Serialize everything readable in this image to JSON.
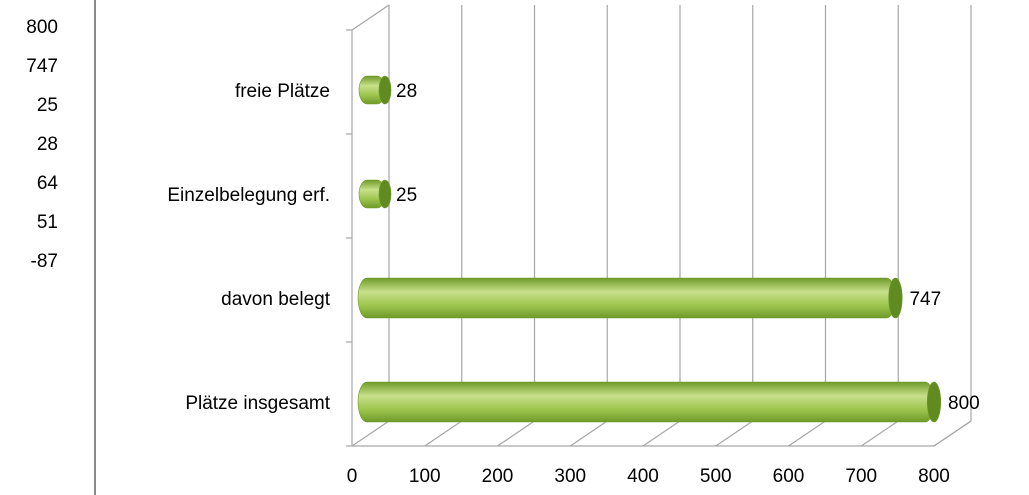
{
  "side_values": [
    "800",
    "747",
    "25",
    "28",
    "64",
    "51",
    "-87"
  ],
  "chart_data": {
    "type": "bar",
    "orientation": "horizontal",
    "style": "3d-cylinder",
    "categories": [
      "Plätze insgesamt",
      "davon belegt",
      "Einzelbelegung erf.",
      "freie Plätze"
    ],
    "values": [
      800,
      747,
      25,
      28
    ],
    "data_labels": [
      "800",
      "747",
      "25",
      "28"
    ],
    "x_ticks": [
      "0",
      "100",
      "200",
      "300",
      "400",
      "500",
      "600",
      "700",
      "800"
    ],
    "xlim": [
      0,
      800
    ],
    "grid": true,
    "legend": "none",
    "colors": {
      "bar_light": "#c7e08a",
      "bar_mid": "#9bc44c",
      "bar_dark": "#6f9a2a",
      "cap": "#5f8b21",
      "grid": "#a6a6a6"
    }
  }
}
